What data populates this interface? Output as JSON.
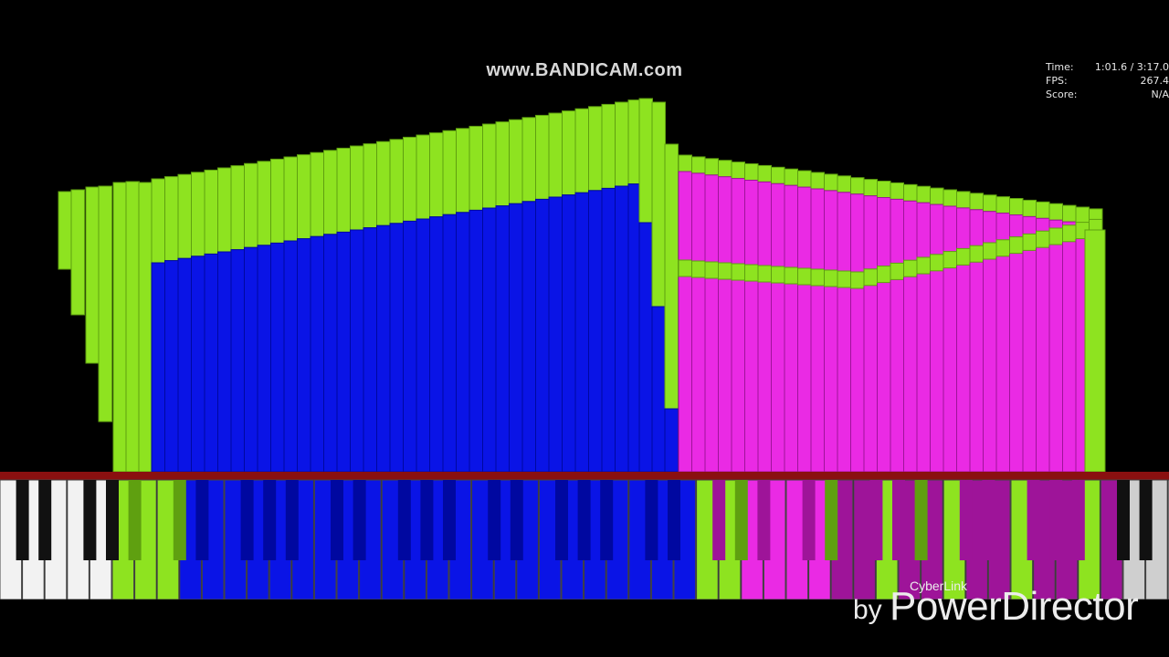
{
  "watermark": {
    "text": "www.BANDICAM.com"
  },
  "stats": {
    "time_label": "Time:",
    "time_value": "1:01.6 / 3:17.0",
    "fps_label": "FPS:",
    "fps_value": "267.4",
    "score_label": "Score:",
    "score_value": "N/A"
  },
  "branding": {
    "cyberlink": "CyberLink",
    "by": "by",
    "product": "PowerDirector"
  },
  "colors": {
    "green": "#8ee320",
    "green_dark": "#5fa010",
    "blue": "#0a14e6",
    "blue_dark": "#0008a0",
    "magenta": "#ea2ae4",
    "magenta_dark": "#9e1499",
    "keyboard_bar": "#8a1010",
    "white_key": "#f2f2f2",
    "black_key": "#111111",
    "background": "#000000"
  },
  "icons": {
    "keyboard": "piano-keyboard-icon"
  }
}
